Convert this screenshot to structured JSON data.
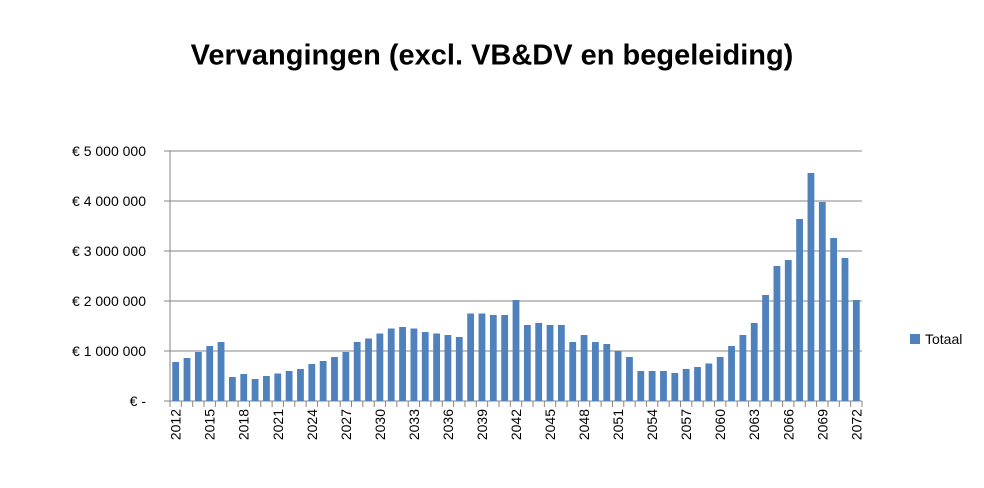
{
  "chart_data": {
    "type": "bar",
    "title": "Vervangingen (excl. VB&DV en begeleiding)",
    "categories": [
      "2012",
      null,
      null,
      "2015",
      null,
      null,
      "2018",
      null,
      null,
      "2021",
      null,
      null,
      "2024",
      null,
      null,
      "2027",
      null,
      null,
      "2030",
      null,
      null,
      "2033",
      null,
      null,
      "2036",
      null,
      null,
      "2039",
      null,
      null,
      "2042",
      null,
      null,
      "2045",
      null,
      null,
      "2048",
      null,
      null,
      "2051",
      null,
      null,
      "2054",
      null,
      null,
      "2057",
      null,
      null,
      "2060",
      null,
      null,
      "2063",
      null,
      null,
      "2066",
      null,
      null,
      "2069",
      null,
      null,
      "2072"
    ],
    "series": [
      {
        "name": "Totaal",
        "color": "#4f81bd",
        "values": [
          780000,
          860000,
          980000,
          1100000,
          1180000,
          480000,
          540000,
          440000,
          500000,
          550000,
          600000,
          640000,
          740000,
          800000,
          880000,
          980000,
          1180000,
          1250000,
          1350000,
          1450000,
          1480000,
          1450000,
          1380000,
          1350000,
          1320000,
          1280000,
          1750000,
          1750000,
          1720000,
          1720000,
          2020000,
          1520000,
          1560000,
          1520000,
          1520000,
          1180000,
          1320000,
          1180000,
          1140000,
          1000000,
          880000,
          600000,
          600000,
          600000,
          560000,
          640000,
          680000,
          750000,
          880000,
          1100000,
          1320000,
          1560000,
          2120000,
          2700000,
          2820000,
          3640000,
          4560000,
          3980000,
          3260000,
          2860000,
          2020000
        ]
      }
    ],
    "ylim": [
      0,
      5000000
    ],
    "yticks": [
      {
        "value": 0,
        "label": "€ -"
      },
      {
        "value": 1000000,
        "label": "€ 1 000 000"
      },
      {
        "value": 2000000,
        "label": "€ 2 000 000"
      },
      {
        "value": 3000000,
        "label": "€ 3 000 000"
      },
      {
        "value": 4000000,
        "label": "€ 4 000 000"
      },
      {
        "value": 5000000,
        "label": "€ 5 000 000"
      }
    ],
    "grid": true,
    "legend": "right"
  }
}
